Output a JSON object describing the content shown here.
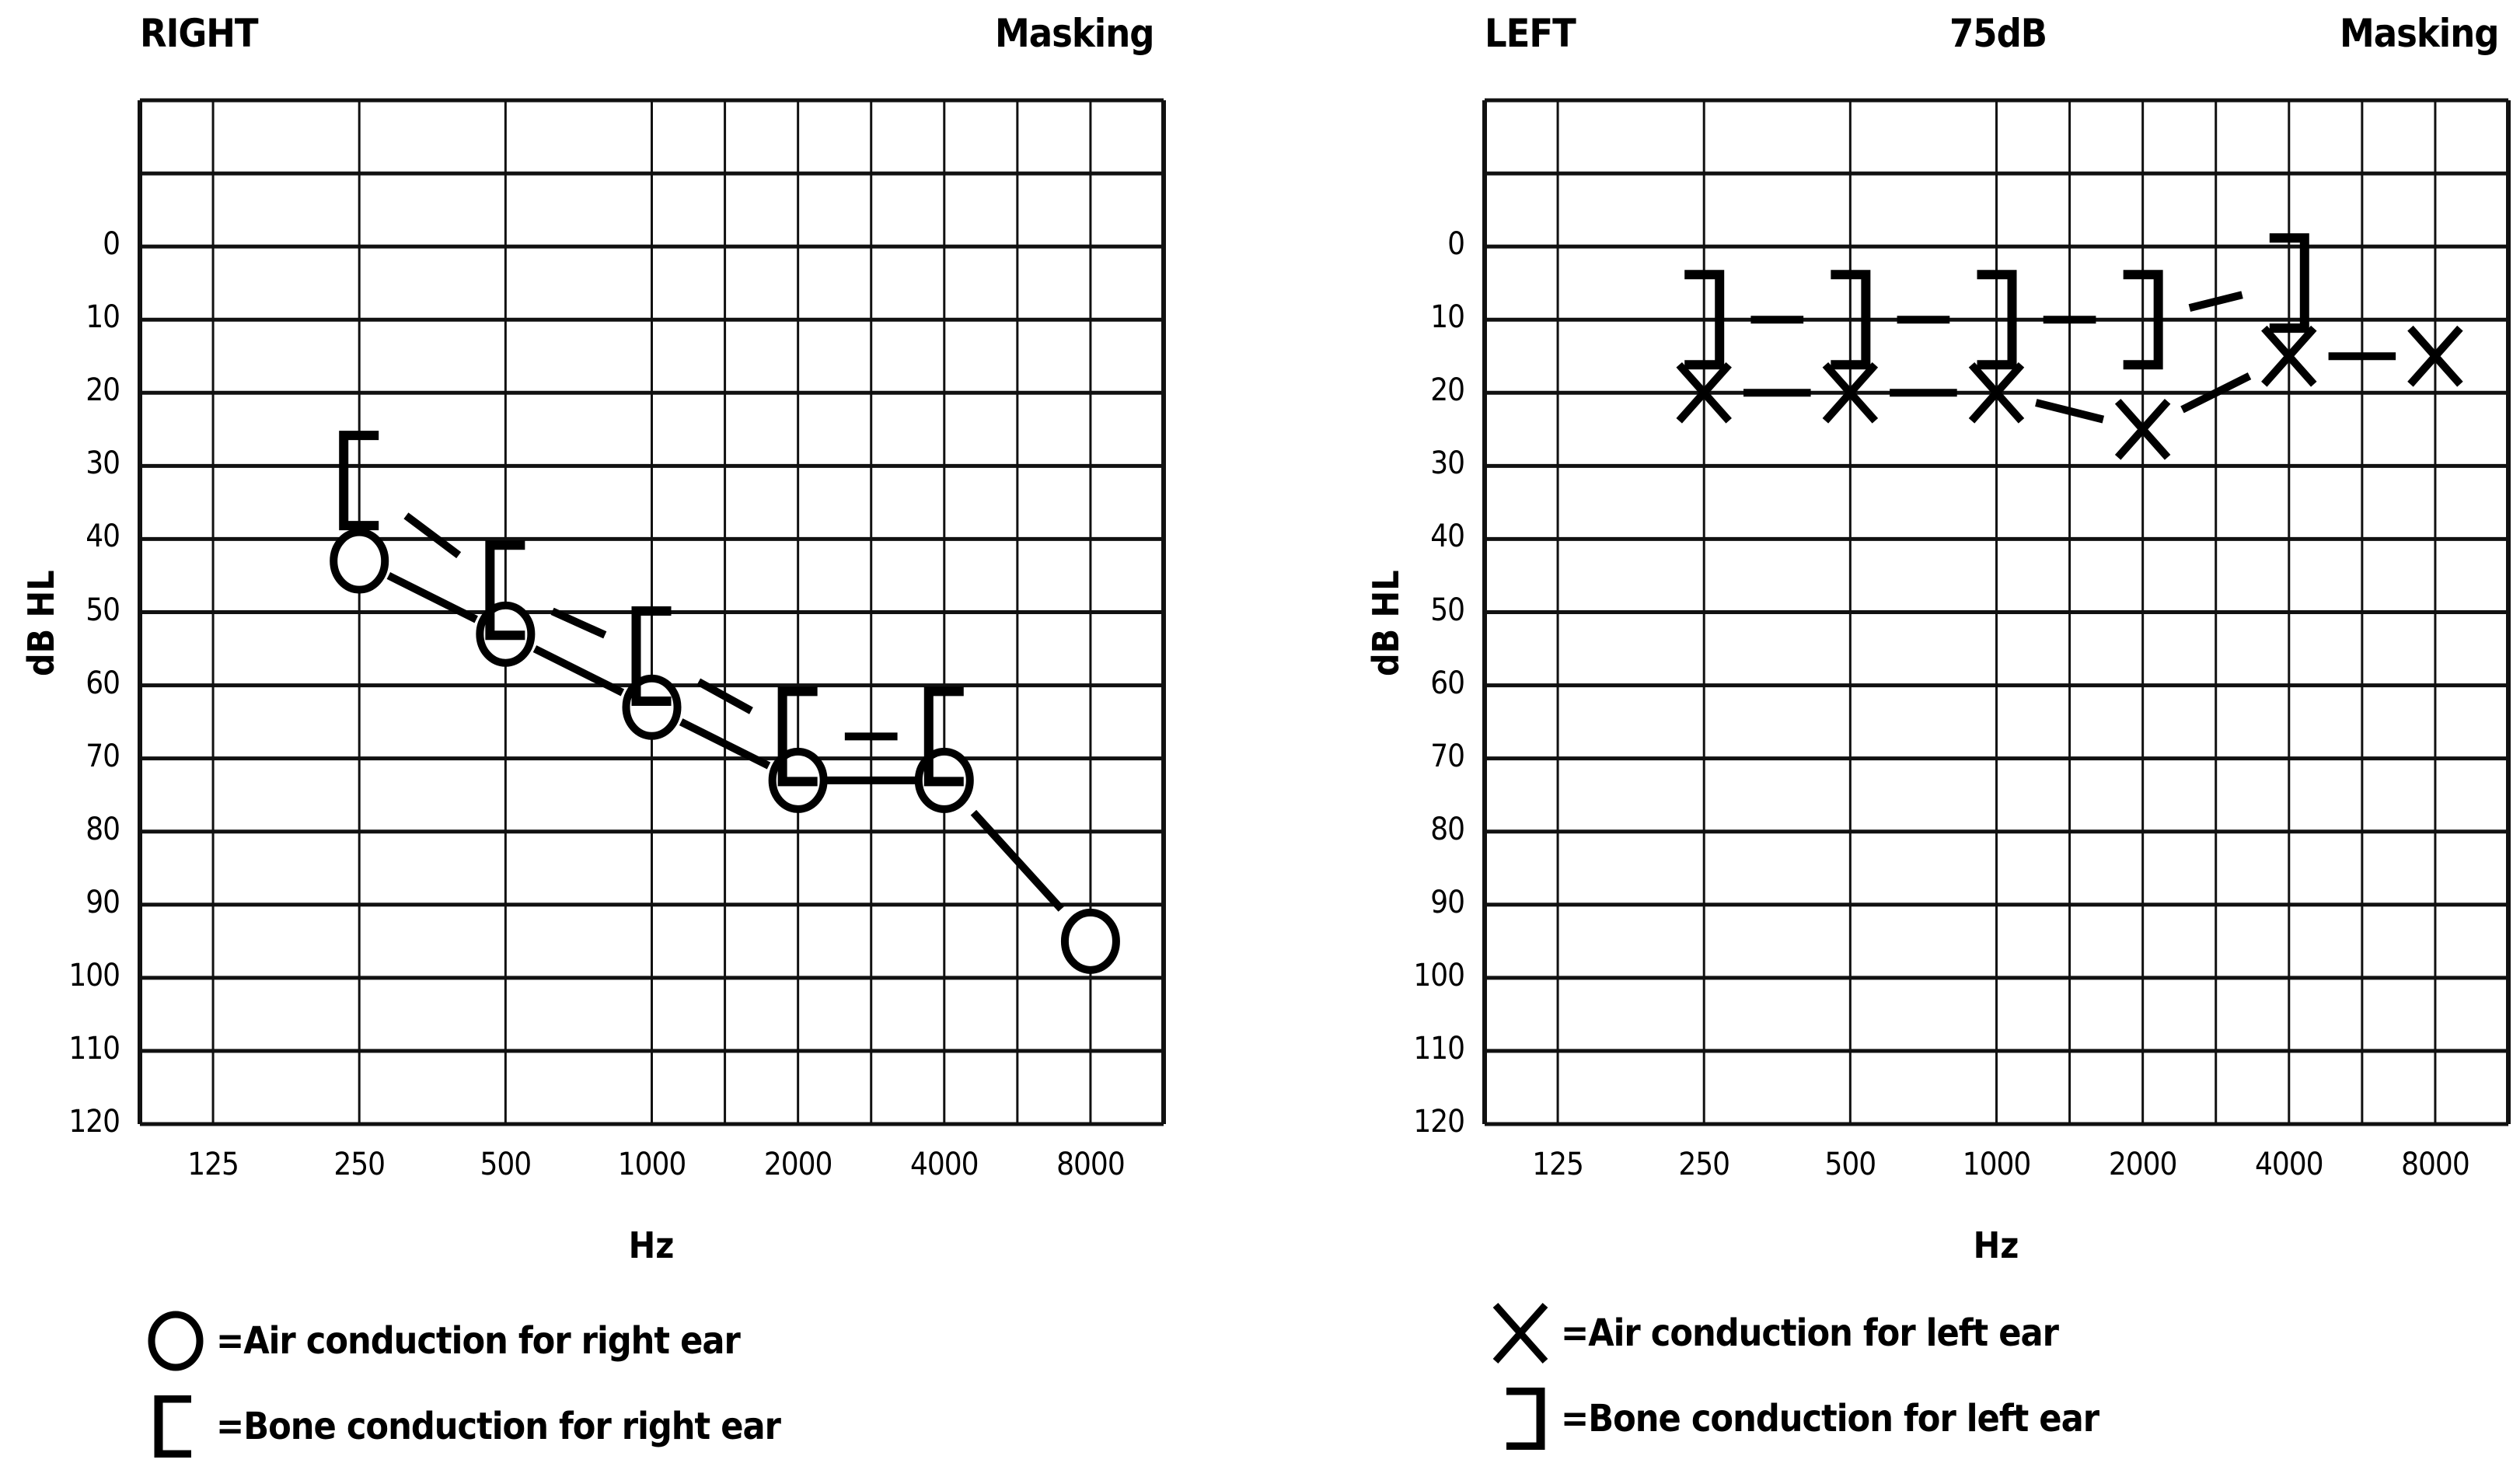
{
  "chart_data": [
    {
      "type": "line",
      "title": "RIGHT",
      "header_right": "Masking",
      "xlabel": "Hz",
      "ylabel": "dB HL",
      "x_tick_labels": [
        "125",
        "250",
        "500",
        "1000",
        "2000",
        "4000",
        "8000"
      ],
      "y_tick_labels": [
        "0",
        "10",
        "20",
        "30",
        "40",
        "50",
        "60",
        "70",
        "80",
        "90",
        "100",
        "110",
        "120"
      ],
      "ylim": [
        -20,
        120
      ],
      "y_inverted": true,
      "grid": true,
      "series": [
        {
          "name": "Air conduction for right ear",
          "marker": "circle",
          "x": [
            250,
            500,
            1000,
            2000,
            4000,
            8000
          ],
          "values": [
            43,
            53,
            63,
            73,
            73,
            95
          ]
        },
        {
          "name": "Bone conduction for right ear",
          "marker": "left-bracket",
          "x": [
            250,
            500,
            1000,
            2000,
            4000
          ],
          "values": [
            32,
            47,
            56,
            67,
            67
          ]
        }
      ]
    },
    {
      "type": "line",
      "title": "LEFT",
      "header_center": "75dB",
      "header_right": "Masking",
      "xlabel": "Hz",
      "ylabel": "dB HL",
      "x_tick_labels": [
        "125",
        "250",
        "500",
        "1000",
        "2000",
        "4000",
        "8000"
      ],
      "y_tick_labels": [
        "0",
        "10",
        "20",
        "30",
        "40",
        "50",
        "60",
        "70",
        "80",
        "90",
        "100",
        "110",
        "120"
      ],
      "ylim": [
        -20,
        120
      ],
      "y_inverted": true,
      "grid": true,
      "series": [
        {
          "name": "Air conduction for left ear",
          "marker": "x",
          "x": [
            250,
            500,
            1000,
            2000,
            4000,
            8000
          ],
          "values": [
            20,
            20,
            20,
            25,
            15,
            15
          ]
        },
        {
          "name": "Bone conduction for left ear",
          "marker": "right-bracket",
          "x": [
            250,
            500,
            1000,
            2000,
            4000
          ],
          "values": [
            10,
            10,
            10,
            10,
            5
          ]
        }
      ]
    }
  ],
  "right_panel": {
    "title": "RIGHT",
    "masking": "Masking",
    "ylabel": "dB HL",
    "xlabel": "Hz",
    "legend": {
      "air": "=Air conduction for right ear",
      "bone": "=Bone conduction for right ear"
    }
  },
  "left_panel": {
    "title": "LEFT",
    "masking_level": "75dB",
    "masking": "Masking",
    "ylabel": "dB HL",
    "xlabel": "Hz",
    "legend": {
      "air": "=Air conduction for left ear",
      "bone": "=Bone conduction for left ear"
    }
  },
  "icons": {
    "air_right": "circle-marker-icon",
    "bone_right": "left-bracket-marker-icon",
    "air_left": "x-marker-icon",
    "bone_left": "right-bracket-marker-icon"
  }
}
